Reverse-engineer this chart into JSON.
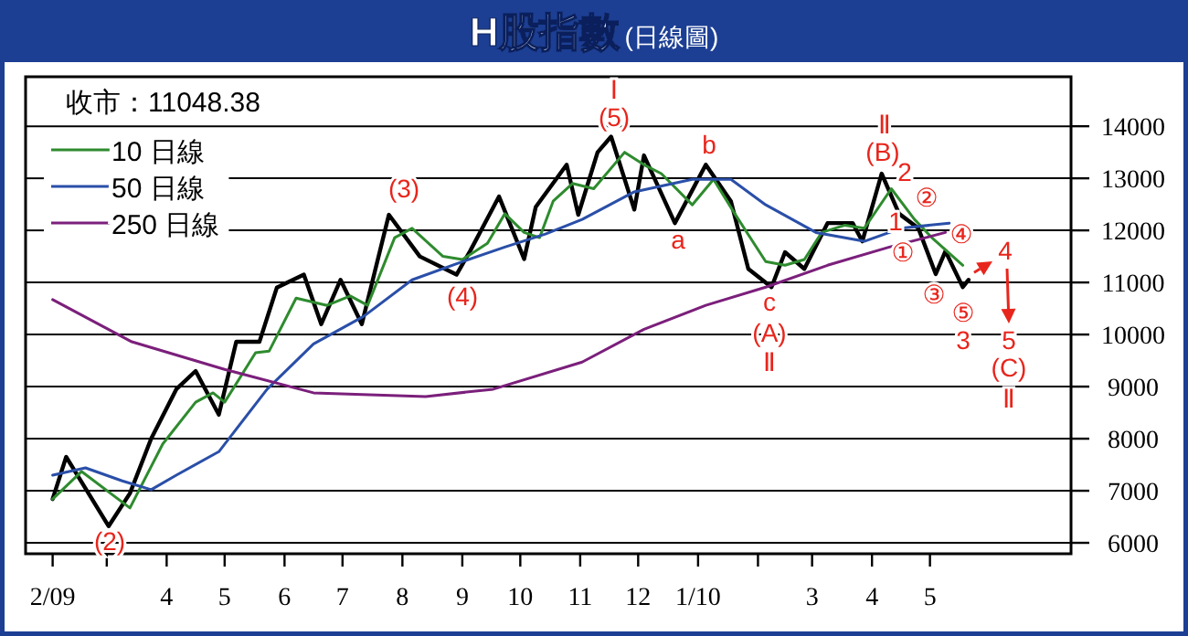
{
  "chart_data": {
    "type": "line",
    "title": "H股指數",
    "subtitle": "(日線圖)",
    "xlim": [
      "2009-01-18",
      "2010-07-13"
    ],
    "ylim": [
      5790,
      14950
    ],
    "yticks": [
      6000,
      7000,
      8000,
      9000,
      10000,
      11000,
      12000,
      13000,
      14000
    ],
    "xticks": [
      {
        "value": "2009-02-01",
        "label": "2/09"
      },
      {
        "value": "2009-03-01",
        "label": null
      },
      {
        "value": "2009-04-01",
        "label": "4"
      },
      {
        "value": "2009-05-01",
        "label": "5"
      },
      {
        "value": "2009-06-01",
        "label": "6"
      },
      {
        "value": "2009-07-01",
        "label": "7"
      },
      {
        "value": "2009-08-01",
        "label": "8"
      },
      {
        "value": "2009-09-01",
        "label": "9"
      },
      {
        "value": "2009-10-01",
        "label": "10"
      },
      {
        "value": "2009-11-01",
        "label": "11"
      },
      {
        "value": "2009-12-01",
        "label": "12"
      },
      {
        "value": "2010-01-01",
        "label": "1/10"
      },
      {
        "value": "2010-02-01",
        "label": null
      },
      {
        "value": "2010-03-01",
        "label": "3"
      },
      {
        "value": "2010-04-01",
        "label": "4"
      },
      {
        "value": "2010-05-01",
        "label": "5"
      }
    ],
    "grid": "y",
    "legend": "top left",
    "series": [
      {
        "color": "#000000",
        "x": [
          "2009-02-01",
          "2009-02-08",
          "2009-03-02",
          "2009-03-13",
          "2009-03-24",
          "2009-04-06",
          "2009-04-16",
          "2009-04-28",
          "2009-05-07",
          "2009-05-19",
          "2009-05-28",
          "2009-06-11",
          "2009-06-20",
          "2009-06-30",
          "2009-07-11",
          "2009-07-25",
          "2009-08-10",
          "2009-08-29",
          "2009-09-05",
          "2009-09-20",
          "2009-10-03",
          "2009-10-09",
          "2009-10-25",
          "2009-10-31",
          "2009-11-10",
          "2009-11-17",
          "2009-11-29",
          "2009-12-04",
          "2009-12-20",
          "2010-01-05",
          "2010-01-18",
          "2010-01-27",
          "2010-02-08",
          "2010-02-15",
          "2010-02-25",
          "2010-03-09",
          "2010-03-22",
          "2010-03-27",
          "2010-04-06",
          "2010-04-15",
          "2010-04-25",
          "2010-05-04",
          "2010-05-09",
          "2010-05-18",
          "2010-05-21"
        ],
        "values": [
          6840,
          7650,
          6320,
          6950,
          8000,
          8950,
          9300,
          8460,
          9860,
          9860,
          10900,
          11150,
          10200,
          11050,
          10200,
          12300,
          11500,
          11150,
          11600,
          12650,
          11450,
          12450,
          13260,
          12300,
          13500,
          13800,
          12400,
          13440,
          12140,
          13260,
          12560,
          11260,
          10910,
          11580,
          11260,
          12140,
          12140,
          11790,
          13090,
          12320,
          12040,
          11160,
          11600,
          10910,
          11050
        ]
      },
      {
        "name": "10 日線",
        "color": "#2e8b2e",
        "x": [
          "2009-02-01",
          "2009-02-16",
          "2009-03-13",
          "2009-03-30",
          "2009-04-16",
          "2009-04-25",
          "2009-05-01",
          "2009-05-17",
          "2009-05-24",
          "2009-06-07",
          "2009-06-23",
          "2009-07-05",
          "2009-07-14",
          "2009-07-28",
          "2009-08-06",
          "2009-08-22",
          "2009-09-01",
          "2009-09-14",
          "2009-09-23",
          "2009-10-03",
          "2009-10-11",
          "2009-10-18",
          "2009-10-28",
          "2009-11-08",
          "2009-11-24",
          "2009-12-04",
          "2009-12-13",
          "2009-12-29",
          "2010-01-09",
          "2010-01-20",
          "2010-02-05",
          "2010-02-15",
          "2010-02-25",
          "2010-03-06",
          "2010-03-18",
          "2010-03-28",
          "2010-04-11",
          "2010-04-23",
          "2010-05-02",
          "2010-05-18"
        ],
        "values": [
          6840,
          7370,
          6670,
          7900,
          8700,
          8880,
          8700,
          9650,
          9680,
          10700,
          10560,
          10740,
          10560,
          11860,
          12040,
          11500,
          11440,
          11750,
          12320,
          11960,
          11860,
          12560,
          12900,
          12800,
          13500,
          13260,
          13090,
          12490,
          12980,
          12320,
          11400,
          11330,
          11440,
          11960,
          12100,
          12040,
          12800,
          12210,
          11860,
          11330
        ]
      },
      {
        "name": "50 日線",
        "color": "#2a4fa8",
        "x": [
          "2009-02-01",
          "2009-02-18",
          "2009-03-09",
          "2009-03-24",
          "2009-04-06",
          "2009-04-28",
          "2009-05-23",
          "2009-06-16",
          "2009-07-12",
          "2009-08-06",
          "2009-09-01",
          "2009-09-23",
          "2009-10-14",
          "2009-11-02",
          "2009-11-29",
          "2009-12-29",
          "2010-01-18",
          "2010-02-05",
          "2010-03-03",
          "2010-03-28",
          "2010-04-16",
          "2010-05-11"
        ],
        "values": [
          7300,
          7440,
          7190,
          7020,
          7300,
          7750,
          8950,
          9820,
          10350,
          11050,
          11400,
          11680,
          11930,
          12210,
          12740,
          12980,
          12980,
          12490,
          11960,
          11790,
          12040,
          12140
        ]
      },
      {
        "name": "250 日線",
        "color": "#7b1f7b",
        "x": [
          "2009-02-01",
          "2009-03-14",
          "2009-05-01",
          "2009-06-16",
          "2009-08-13",
          "2009-09-17",
          "2009-11-02",
          "2009-12-04",
          "2010-01-05",
          "2010-02-05",
          "2010-03-09",
          "2010-04-10",
          "2010-05-09"
        ],
        "values": [
          10670,
          9860,
          9330,
          8880,
          8810,
          8950,
          9470,
          10100,
          10560,
          10910,
          11330,
          11680,
          11960
        ]
      }
    ],
    "annotations": [
      "收市：11048.38",
      "Ⅰ",
      "(5)",
      "(3)",
      "(4)",
      "(2)",
      "a",
      "b",
      "c",
      "(A)",
      "Ⅱ",
      "Ⅱ",
      "(B)",
      "2",
      "1",
      "②",
      "④",
      "①",
      "③",
      "⑤",
      "3",
      "4",
      "5",
      "(C)",
      "Ⅱ"
    ]
  }
}
